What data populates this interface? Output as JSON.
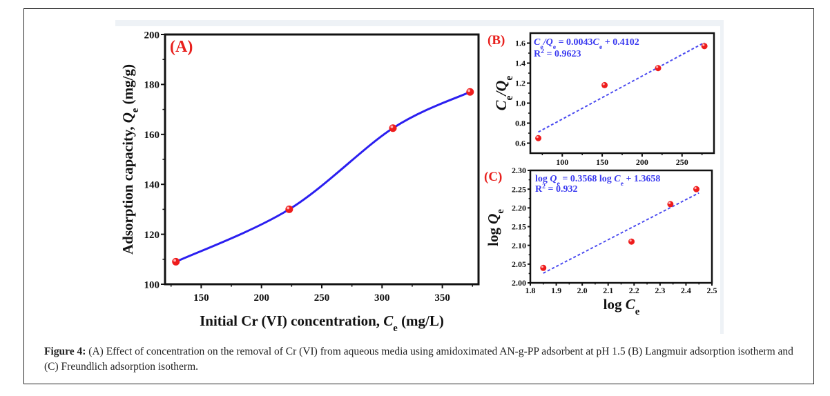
{
  "caption": {
    "label": "Figure 4:",
    "text": " (A) Effect of concentration on the removal of Cr (VI) from aqueous media using amidoximated AN-g-PP adsorbent at pH 1.5 (B) Langmuir adsorption isotherm and (C) Freundlich adsorption isotherm."
  },
  "colors": {
    "curve": "#2b1ff0",
    "marker": "#ee1c1c",
    "fit_line": "#4a4af0",
    "panel_label": "#e8201d",
    "equation": "#3a3af0"
  },
  "chart_data": [
    {
      "id": "A",
      "type": "line",
      "panel_label": "(A)",
      "title": "",
      "xlabel": "Initial Cr (VI) concentration, C_e (mg/L)",
      "xlabel_parts": [
        "Initial Cr (VI) concentration, ",
        "C",
        "e",
        " (mg/L)"
      ],
      "ylabel": "Adsorption capacity, Q_e (mg/g)",
      "ylabel_parts": [
        "Adsorption capacity, ",
        "Q",
        "e",
        " (mg/g)"
      ],
      "xlim": [
        120,
        380
      ],
      "ylim": [
        100,
        200
      ],
      "xticks": [
        150,
        200,
        250,
        300,
        350
      ],
      "yticks": [
        100,
        120,
        140,
        160,
        180,
        200
      ],
      "grid": false,
      "series": [
        {
          "name": "Q_e",
          "x": [
            129,
            223,
            309,
            373
          ],
          "y": [
            109,
            130,
            162.5,
            177
          ],
          "smooth": true
        }
      ]
    },
    {
      "id": "B",
      "type": "scatter",
      "panel_label": "(B)",
      "title": "Langmuir adsorption isotherm",
      "xlabel": "",
      "ylabel": "C_e/Q_e",
      "ylabel_parts": [
        "C",
        "e",
        "/",
        "Q",
        "e"
      ],
      "xlim": [
        60,
        290
      ],
      "ylim": [
        0.5,
        1.7
      ],
      "xticks": [
        100,
        150,
        200,
        250
      ],
      "yticks": [
        0.6,
        0.8,
        1.0,
        1.2,
        1.4,
        1.6
      ],
      "ytick_labels": [
        "0.6",
        "0.8",
        "1.0",
        "1.2",
        "1.4",
        "1.6"
      ],
      "grid": false,
      "series": [
        {
          "name": "data",
          "x": [
            70,
            153,
            220,
            278
          ],
          "y": [
            0.65,
            1.18,
            1.35,
            1.57
          ]
        }
      ],
      "fit": {
        "slope": 0.0043,
        "intercept": 0.4102,
        "x_range": [
          70,
          278
        ],
        "style": "dashed"
      },
      "equation": "C_e/Q_e = 0.0043C_e + 0.4102",
      "equation_parts": [
        "C",
        "e",
        "/Q",
        "e",
        " = 0.0043",
        "C",
        "e",
        " + 0.4102"
      ],
      "r2": "R² = 0.9623",
      "r2_parts": [
        "R",
        "2",
        " = 0.9623"
      ]
    },
    {
      "id": "C",
      "type": "scatter",
      "panel_label": "(C)",
      "title": "Freundlich adsorption isotherm",
      "xlabel": "log C_e",
      "xlabel_parts": [
        "log ",
        "C",
        "e"
      ],
      "ylabel": "log Q_e",
      "ylabel_parts": [
        "log ",
        "Q",
        "e"
      ],
      "xlim": [
        1.8,
        2.5
      ],
      "ylim": [
        2.0,
        2.3
      ],
      "xticks": [
        1.8,
        1.9,
        2.0,
        2.1,
        2.2,
        2.3,
        2.4,
        2.5
      ],
      "xtick_labels": [
        "1.8",
        "1.9",
        "2.0",
        "2.1",
        "2.2",
        "2.3",
        "2.4",
        "2.5"
      ],
      "yticks": [
        2.0,
        2.05,
        2.1,
        2.15,
        2.2,
        2.25,
        2.3
      ],
      "ytick_labels": [
        "2.00",
        "2.05",
        "2.10",
        "2.15",
        "2.20",
        "2.25",
        "2.30"
      ],
      "grid": false,
      "series": [
        {
          "name": "data",
          "x": [
            1.85,
            2.19,
            2.34,
            2.44
          ],
          "y": [
            2.04,
            2.11,
            2.21,
            2.25
          ]
        }
      ],
      "fit": {
        "slope": 0.3568,
        "intercept": 1.3658,
        "x_range": [
          1.85,
          2.45
        ],
        "style": "dashed"
      },
      "equation": "log Q_e = 0.3568 log C_e + 1.3658",
      "equation_parts": [
        "log ",
        "Q",
        "e",
        " = 0.3568 log ",
        "C",
        "e",
        " + 1.3658"
      ],
      "r2": "R² = 0.932",
      "r2_parts": [
        "R",
        "2",
        " = 0.932"
      ]
    }
  ]
}
